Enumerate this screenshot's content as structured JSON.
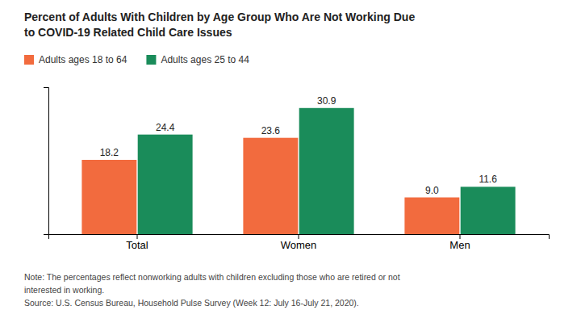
{
  "chart_data": {
    "type": "bar",
    "title": "Percent of Adults With Children by Age Group Who Are Not Working Due\nto COVID-19 Related Child Care Issues",
    "categories": [
      "Total",
      "Women",
      "Men"
    ],
    "series": [
      {
        "name": "Adults ages 18 to 64",
        "color": "#f26b3e",
        "values": [
          18.2,
          23.6,
          9.0
        ],
        "value_labels": [
          "18.2",
          "23.6",
          "9.0"
        ]
      },
      {
        "name": "Adults ages 25 to 44",
        "color": "#1a8c5a",
        "values": [
          24.4,
          30.9,
          11.6
        ],
        "value_labels": [
          "24.4",
          "30.9",
          "11.6"
        ]
      }
    ],
    "ylim": [
      0,
      36
    ],
    "yticks": [],
    "tick_labels": "x",
    "data_labels": true,
    "legend": "top",
    "grid": false,
    "annotations": [
      "Note: The percentages reflect nonworking adults with children excluding those who are retired or not",
      "interested in working.",
      "Source: U.S. Census Bureau, Household Pulse Survey (Week 12: July 16-July 21, 2020)."
    ]
  }
}
